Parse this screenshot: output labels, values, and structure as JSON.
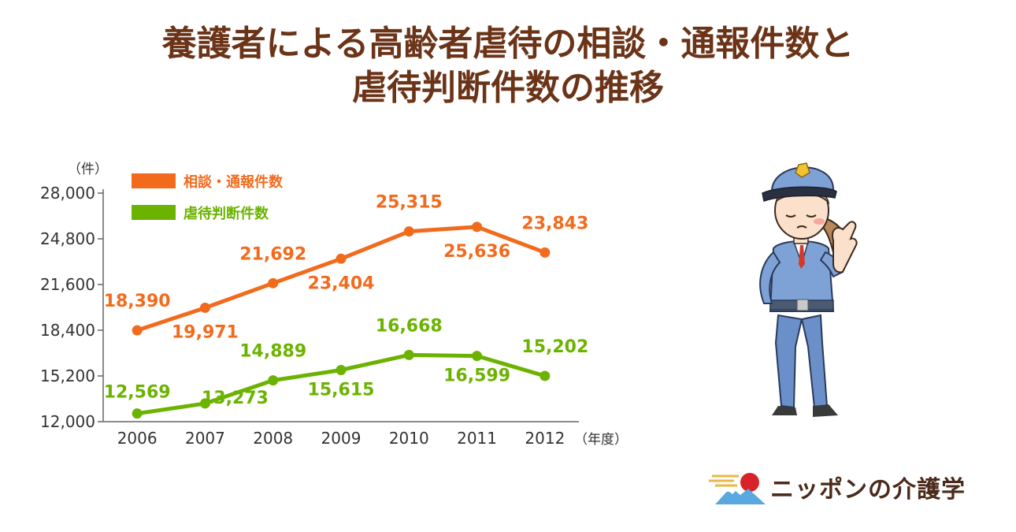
{
  "title": {
    "line1": "養護者による高齢者虐待の相談・通報件数と",
    "line2": "虐待判断件数の推移"
  },
  "brand": {
    "name": "ニッポンの介護学"
  },
  "colors": {
    "series1": "#f26b1d",
    "series2": "#6bb300",
    "title": "#6b3418"
  },
  "chart_data": {
    "type": "line",
    "x": [
      "2006",
      "2007",
      "2008",
      "2009",
      "2010",
      "2011",
      "2012"
    ],
    "y_unit": "（件）",
    "x_unit": "（年度）",
    "ylim": [
      12000,
      28000
    ],
    "yticks": [
      "12,000",
      "15,200",
      "18,400",
      "21,600",
      "24,800",
      "28,000"
    ],
    "legend_position": "top-left",
    "series": [
      {
        "name": "相談・通報件数",
        "values": [
          18390,
          19971,
          21692,
          23404,
          25315,
          25636,
          23843
        ],
        "labels": [
          "18,390",
          "19,971",
          "21,692",
          "23,404",
          "25,315",
          "25,636",
          "23,843"
        ]
      },
      {
        "name": "虐待判断件数",
        "values": [
          12569,
          13273,
          14889,
          15615,
          16668,
          16599,
          15202
        ],
        "labels": [
          "12,569",
          "13,273",
          "14,889",
          "15,615",
          "16,668",
          "16,599",
          "15,202"
        ]
      }
    ]
  }
}
